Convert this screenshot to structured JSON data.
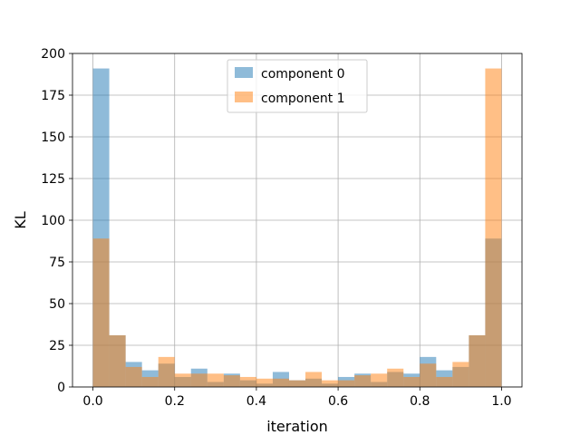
{
  "chart_data": {
    "type": "bar",
    "subtype": "histogram",
    "xlabel": "iteration",
    "ylabel": "KL",
    "xlim": [
      -0.05,
      1.05
    ],
    "ylim": [
      0,
      200
    ],
    "bin_edges": [
      0.0,
      0.04,
      0.08,
      0.12,
      0.16,
      0.2,
      0.24,
      0.28,
      0.32,
      0.36,
      0.4,
      0.44,
      0.48,
      0.52,
      0.56,
      0.6,
      0.64,
      0.68,
      0.72,
      0.76,
      0.8,
      0.84,
      0.88,
      0.92,
      0.96,
      1.0
    ],
    "xticks": [
      0.0,
      0.2,
      0.4,
      0.6,
      0.8,
      1.0
    ],
    "xtick_labels": [
      "0.0",
      "0.2",
      "0.4",
      "0.6",
      "0.8",
      "1.0"
    ],
    "yticks": [
      0,
      25,
      50,
      75,
      100,
      125,
      150,
      175,
      200
    ],
    "ytick_labels": [
      "0",
      "25",
      "50",
      "75",
      "100",
      "125",
      "150",
      "175",
      "200"
    ],
    "grid": true,
    "legend_position": "top-center",
    "series": [
      {
        "name": "component 0",
        "color": "#1f77b4",
        "values": [
          191,
          31,
          15,
          10,
          14,
          6,
          11,
          3,
          8,
          4,
          2,
          9,
          4,
          5,
          2,
          6,
          8,
          3,
          9,
          8,
          18,
          10,
          12,
          31,
          89
        ]
      },
      {
        "name": "component 1",
        "color": "#ff7f0e",
        "values": [
          89,
          31,
          12,
          6,
          18,
          8,
          8,
          8,
          7,
          6,
          5,
          5,
          4,
          9,
          4,
          4,
          7,
          8,
          11,
          6,
          14,
          6,
          15,
          31,
          191
        ]
      }
    ],
    "bar_alpha": 0.5,
    "overlap_color": "#c79a72"
  }
}
